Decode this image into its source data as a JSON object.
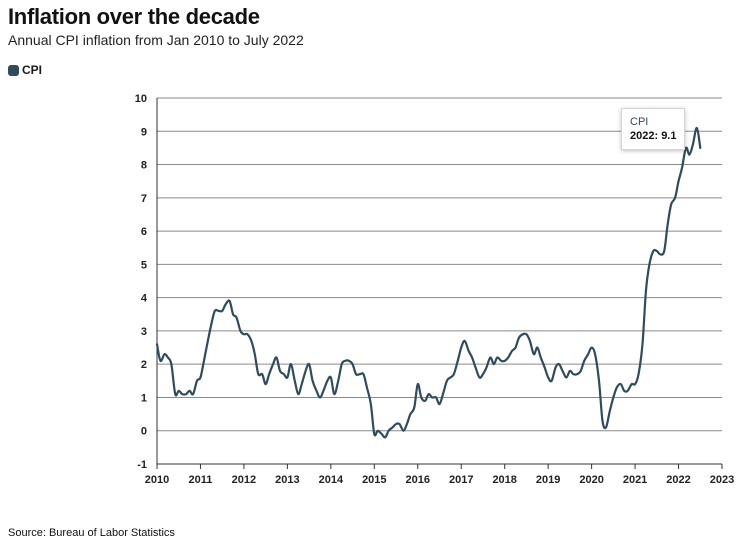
{
  "header": {
    "title": "Inflation over the decade",
    "subtitle": "Annual CPI inflation from Jan 2010 to July 2022"
  },
  "legend": {
    "label": "CPI",
    "color": "#2f4b5c"
  },
  "source": "Source: Bureau of Labor Statistics",
  "tooltip": {
    "series": "CPI",
    "value_text": "2022: 9.1"
  },
  "chart_data": {
    "type": "line",
    "title": "Inflation over the decade",
    "subtitle": "Annual CPI inflation from Jan 2010 to July 2022",
    "xlabel": "",
    "ylabel": "",
    "xlim": [
      2010,
      2023
    ],
    "ylim": [
      -1,
      10
    ],
    "x_ticks": [
      2010,
      2011,
      2012,
      2013,
      2014,
      2015,
      2016,
      2017,
      2018,
      2019,
      2020,
      2021,
      2022,
      2023
    ],
    "y_ticks": [
      -1,
      0,
      1,
      2,
      3,
      4,
      5,
      6,
      7,
      8,
      9,
      10
    ],
    "grid": "horizontal",
    "series": [
      {
        "name": "CPI",
        "color": "#2f4b5c",
        "x": [
          2010.0,
          2010.08,
          2010.17,
          2010.25,
          2010.33,
          2010.42,
          2010.5,
          2010.58,
          2010.67,
          2010.75,
          2010.83,
          2010.92,
          2011.0,
          2011.08,
          2011.17,
          2011.25,
          2011.33,
          2011.42,
          2011.5,
          2011.58,
          2011.67,
          2011.75,
          2011.83,
          2011.92,
          2012.0,
          2012.08,
          2012.17,
          2012.25,
          2012.33,
          2012.42,
          2012.5,
          2012.58,
          2012.67,
          2012.75,
          2012.83,
          2012.92,
          2013.0,
          2013.08,
          2013.17,
          2013.25,
          2013.33,
          2013.42,
          2013.5,
          2013.58,
          2013.67,
          2013.75,
          2013.83,
          2013.92,
          2014.0,
          2014.08,
          2014.17,
          2014.25,
          2014.33,
          2014.42,
          2014.5,
          2014.58,
          2014.67,
          2014.75,
          2014.83,
          2014.92,
          2015.0,
          2015.08,
          2015.17,
          2015.25,
          2015.33,
          2015.42,
          2015.5,
          2015.58,
          2015.67,
          2015.75,
          2015.83,
          2015.92,
          2016.0,
          2016.08,
          2016.17,
          2016.25,
          2016.33,
          2016.42,
          2016.5,
          2016.58,
          2016.67,
          2016.75,
          2016.83,
          2016.92,
          2017.0,
          2017.08,
          2017.17,
          2017.25,
          2017.33,
          2017.42,
          2017.5,
          2017.58,
          2017.67,
          2017.75,
          2017.83,
          2017.92,
          2018.0,
          2018.08,
          2018.17,
          2018.25,
          2018.33,
          2018.42,
          2018.5,
          2018.58,
          2018.67,
          2018.75,
          2018.83,
          2018.92,
          2019.0,
          2019.08,
          2019.17,
          2019.25,
          2019.33,
          2019.42,
          2019.5,
          2019.58,
          2019.67,
          2019.75,
          2019.83,
          2019.92,
          2020.0,
          2020.08,
          2020.17,
          2020.25,
          2020.33,
          2020.42,
          2020.5,
          2020.58,
          2020.67,
          2020.75,
          2020.83,
          2020.92,
          2021.0,
          2021.08,
          2021.17,
          2021.25,
          2021.33,
          2021.42,
          2021.5,
          2021.58,
          2021.67,
          2021.75,
          2021.83,
          2021.92,
          2022.0,
          2022.08,
          2022.17,
          2022.25,
          2022.33,
          2022.42,
          2022.5
        ],
        "values": [
          2.6,
          2.1,
          2.3,
          2.2,
          2.0,
          1.1,
          1.2,
          1.1,
          1.1,
          1.2,
          1.1,
          1.5,
          1.6,
          2.1,
          2.7,
          3.2,
          3.6,
          3.6,
          3.6,
          3.8,
          3.9,
          3.5,
          3.4,
          3.0,
          2.9,
          2.9,
          2.7,
          2.3,
          1.7,
          1.7,
          1.4,
          1.7,
          2.0,
          2.2,
          1.8,
          1.7,
          1.6,
          2.0,
          1.5,
          1.1,
          1.4,
          1.8,
          2.0,
          1.5,
          1.2,
          1.0,
          1.2,
          1.5,
          1.6,
          1.1,
          1.5,
          2.0,
          2.1,
          2.1,
          2.0,
          1.7,
          1.7,
          1.7,
          1.3,
          0.8,
          -0.1,
          0.0,
          -0.1,
          -0.2,
          0.0,
          0.1,
          0.2,
          0.2,
          0.0,
          0.2,
          0.5,
          0.7,
          1.4,
          1.0,
          0.9,
          1.1,
          1.0,
          1.0,
          0.8,
          1.1,
          1.5,
          1.6,
          1.7,
          2.1,
          2.5,
          2.7,
          2.4,
          2.2,
          1.9,
          1.6,
          1.7,
          1.9,
          2.2,
          2.0,
          2.2,
          2.1,
          2.1,
          2.2,
          2.4,
          2.5,
          2.8,
          2.9,
          2.9,
          2.7,
          2.3,
          2.5,
          2.2,
          1.9,
          1.6,
          1.5,
          1.9,
          2.0,
          1.8,
          1.6,
          1.8,
          1.7,
          1.7,
          1.8,
          2.1,
          2.3,
          2.5,
          2.3,
          1.5,
          0.3,
          0.1,
          0.6,
          1.0,
          1.3,
          1.4,
          1.2,
          1.2,
          1.4,
          1.4,
          1.7,
          2.6,
          4.2,
          5.0,
          5.4,
          5.4,
          5.3,
          5.4,
          6.2,
          6.8,
          7.0,
          7.5,
          7.9,
          8.5,
          8.3,
          8.6,
          9.1,
          8.5
        ]
      }
    ],
    "annotations": [
      {
        "x": 2022.42,
        "y": 9.1,
        "text": "2022: 9.1"
      }
    ]
  }
}
